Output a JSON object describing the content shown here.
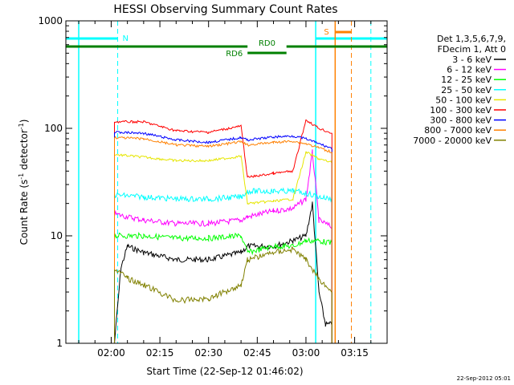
{
  "chart_data": {
    "type": "line",
    "title": "HESSI Observing Summary Count Rates",
    "xlabel": "Start Time (22-Sep-12 01:46:02)",
    "ylabel_main": "Count Rate (s",
    "ylabel_exp1": "-1",
    "ylabel_mid": " detector",
    "ylabel_exp2": "-1",
    "ylabel_end": ")",
    "footer": "22-Sep-2012 05:01",
    "y_scale": "log",
    "ylim": [
      1,
      1000
    ],
    "xlim": [
      "01:46:02",
      "03:25:00"
    ],
    "y_ticks": [
      {
        "value": 1,
        "label": "1"
      },
      {
        "value": 10,
        "label": "10"
      },
      {
        "value": 100,
        "label": "100"
      },
      {
        "value": 1000,
        "label": "1000"
      }
    ],
    "x_ticks": [
      {
        "time": "02:00",
        "label": "02:00"
      },
      {
        "time": "02:15",
        "label": "02:15"
      },
      {
        "time": "02:30",
        "label": "02:30"
      },
      {
        "time": "02:45",
        "label": "02:45"
      },
      {
        "time": "03:00",
        "label": "03:00"
      },
      {
        "time": "03:15",
        "label": "03:15"
      }
    ],
    "legend_header": [
      "Det 1,3,5,6,7,9,",
      "FDecim 1, Att 0"
    ],
    "legend_position": "right",
    "series": [
      {
        "name": "3 - 6 keV",
        "color": "#000000",
        "points": [
          [
            "02:01",
            1
          ],
          [
            "02:03",
            5
          ],
          [
            "02:05",
            8
          ],
          [
            "02:10",
            7
          ],
          [
            "02:20",
            6
          ],
          [
            "02:30",
            6
          ],
          [
            "02:40",
            7
          ],
          [
            "02:42",
            8
          ],
          [
            "02:50",
            8
          ],
          [
            "02:56",
            9
          ],
          [
            "03:00",
            10
          ],
          [
            "03:02",
            20
          ],
          [
            "03:04",
            3
          ],
          [
            "03:06",
            1.5
          ],
          [
            "03:08",
            1.5
          ]
        ]
      },
      {
        "name": "6 - 12 keV",
        "color": "#ff00ff",
        "points": [
          [
            "02:01",
            16
          ],
          [
            "02:05",
            15
          ],
          [
            "02:10",
            14
          ],
          [
            "02:20",
            13
          ],
          [
            "02:30",
            13
          ],
          [
            "02:40",
            14
          ],
          [
            "02:42",
            15
          ],
          [
            "02:50",
            17
          ],
          [
            "02:56",
            18
          ],
          [
            "03:00",
            22
          ],
          [
            "03:02",
            60
          ],
          [
            "03:04",
            14
          ],
          [
            "03:08",
            12
          ]
        ]
      },
      {
        "name": "12 - 25 keV",
        "color": "#00ff00",
        "points": [
          [
            "02:01",
            10
          ],
          [
            "02:10",
            10
          ],
          [
            "02:20",
            9.5
          ],
          [
            "02:30",
            9.5
          ],
          [
            "02:40",
            10
          ],
          [
            "02:42",
            7
          ],
          [
            "02:50",
            8
          ],
          [
            "02:56",
            8
          ],
          [
            "03:00",
            9
          ],
          [
            "03:04",
            9
          ],
          [
            "03:08",
            8.5
          ]
        ]
      },
      {
        "name": "25 - 50 keV",
        "color": "#00ffff",
        "points": [
          [
            "02:01",
            24
          ],
          [
            "02:10",
            23
          ],
          [
            "02:20",
            22
          ],
          [
            "02:30",
            22
          ],
          [
            "02:40",
            23
          ],
          [
            "02:42",
            26
          ],
          [
            "02:50",
            26
          ],
          [
            "02:56",
            26
          ],
          [
            "03:00",
            25
          ],
          [
            "03:04",
            23
          ],
          [
            "03:08",
            22
          ]
        ]
      },
      {
        "name": "50 - 100 keV",
        "color": "#e6e600",
        "points": [
          [
            "02:01",
            57
          ],
          [
            "02:10",
            54
          ],
          [
            "02:20",
            50
          ],
          [
            "02:30",
            50
          ],
          [
            "02:40",
            55
          ],
          [
            "02:42",
            20
          ],
          [
            "02:50",
            21
          ],
          [
            "02:56",
            22
          ],
          [
            "03:00",
            60
          ],
          [
            "03:04",
            52
          ],
          [
            "03:08",
            48
          ]
        ]
      },
      {
        "name": "100 - 300 keV",
        "color": "#ff0000",
        "points": [
          [
            "02:01",
            115
          ],
          [
            "02:10",
            115
          ],
          [
            "02:20",
            95
          ],
          [
            "02:30",
            92
          ],
          [
            "02:40",
            105
          ],
          [
            "02:42",
            35
          ],
          [
            "02:50",
            38
          ],
          [
            "02:56",
            40
          ],
          [
            "03:00",
            120
          ],
          [
            "03:04",
            100
          ],
          [
            "03:08",
            90
          ]
        ]
      },
      {
        "name": "300 - 800 keV",
        "color": "#0000ff",
        "points": [
          [
            "02:01",
            92
          ],
          [
            "02:10",
            90
          ],
          [
            "02:20",
            78
          ],
          [
            "02:30",
            74
          ],
          [
            "02:40",
            82
          ],
          [
            "02:42",
            78
          ],
          [
            "02:50",
            83
          ],
          [
            "02:56",
            85
          ],
          [
            "03:00",
            80
          ],
          [
            "03:04",
            72
          ],
          [
            "03:08",
            65
          ]
        ]
      },
      {
        "name": "800 - 7000 keV",
        "color": "#ff8000",
        "points": [
          [
            "02:01",
            82
          ],
          [
            "02:10",
            80
          ],
          [
            "02:20",
            70
          ],
          [
            "02:30",
            68
          ],
          [
            "02:40",
            75
          ],
          [
            "02:42",
            70
          ],
          [
            "02:50",
            74
          ],
          [
            "02:56",
            76
          ],
          [
            "03:00",
            72
          ],
          [
            "03:04",
            66
          ],
          [
            "03:08",
            60
          ]
        ]
      },
      {
        "name": "7000 - 20000 keV",
        "color": "#808000",
        "points": [
          [
            "02:01",
            5
          ],
          [
            "02:05",
            4
          ],
          [
            "02:10",
            3.5
          ],
          [
            "02:20",
            2.5
          ],
          [
            "02:30",
            2.6
          ],
          [
            "02:40",
            3.5
          ],
          [
            "02:42",
            6
          ],
          [
            "02:50",
            7
          ],
          [
            "02:56",
            7.5
          ],
          [
            "03:00",
            6
          ],
          [
            "03:04",
            4
          ],
          [
            "03:08",
            3
          ]
        ]
      }
    ],
    "annotations": {
      "night_label": "N",
      "saa_label": "S",
      "rd0_label": "RD0",
      "rd6_label": "RD6"
    }
  }
}
